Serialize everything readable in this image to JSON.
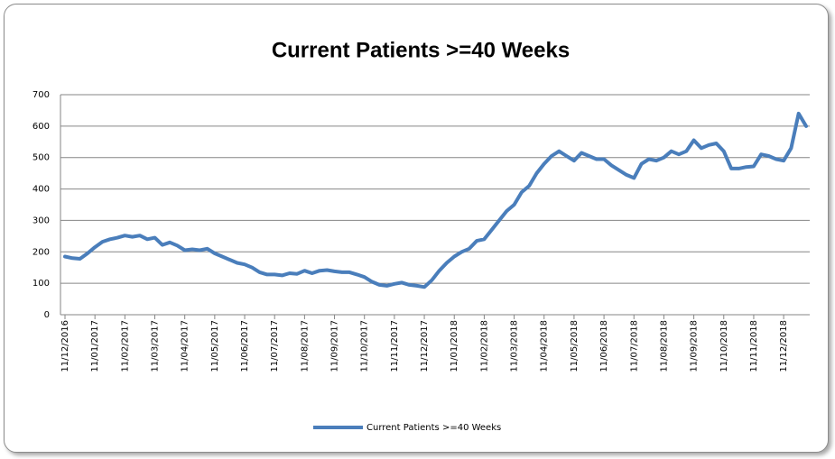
{
  "chart_data": {
    "type": "line",
    "title": "Current Patients >=40 Weeks",
    "categories": [
      "11/12/2016",
      null,
      null,
      null,
      "11/01/2017",
      null,
      null,
      null,
      "11/02/2017",
      null,
      null,
      null,
      "11/03/2017",
      null,
      null,
      null,
      "11/04/2017",
      null,
      null,
      null,
      "11/05/2017",
      null,
      null,
      null,
      "11/06/2017",
      null,
      null,
      null,
      "11/07/2017",
      null,
      null,
      null,
      "11/08/2017",
      null,
      null,
      null,
      "11/09/2017",
      null,
      null,
      null,
      "11/10/2017",
      null,
      null,
      null,
      "11/11/2017",
      null,
      null,
      null,
      "11/12/2017",
      null,
      null,
      null,
      "11/01/2018",
      null,
      null,
      null,
      "11/02/2018",
      null,
      null,
      null,
      "11/03/2018",
      null,
      null,
      null,
      "11/04/2018",
      null,
      null,
      null,
      "11/05/2018",
      null,
      null,
      null,
      "11/06/2018",
      null,
      null,
      null,
      "11/07/2018",
      null,
      null,
      null,
      "11/08/2018",
      null,
      null,
      null,
      "11/09/2018",
      null,
      null,
      null,
      "11/10/2018",
      null,
      null,
      null,
      "11/11/2018",
      null,
      null,
      null,
      "11/12/2018",
      null,
      null,
      null
    ],
    "series": [
      {
        "name": "Current Patients >=40 Weeks",
        "color": "#4a7ebb",
        "values": [
          185,
          180,
          178,
          195,
          215,
          232,
          240,
          245,
          252,
          248,
          252,
          240,
          245,
          222,
          230,
          220,
          205,
          208,
          205,
          210,
          195,
          185,
          175,
          165,
          160,
          150,
          135,
          128,
          128,
          125,
          132,
          130,
          140,
          132,
          140,
          142,
          138,
          135,
          135,
          128,
          120,
          105,
          95,
          92,
          98,
          102,
          95,
          92,
          88,
          110,
          140,
          165,
          185,
          200,
          210,
          235,
          240,
          270,
          300,
          330,
          350,
          390,
          410,
          450,
          480,
          505,
          520,
          505,
          490,
          515,
          505,
          495,
          495,
          475,
          460,
          445,
          435,
          480,
          495,
          490,
          500,
          520,
          510,
          520,
          555,
          530,
          540,
          545,
          520,
          465,
          465,
          470,
          472,
          510,
          505,
          495,
          490,
          530,
          640,
          600
        ]
      }
    ],
    "ylim": [
      0,
      700
    ],
    "yticks": [
      0,
      100,
      200,
      300,
      400,
      500,
      600,
      700
    ],
    "grid": true,
    "legend": "bottom"
  }
}
